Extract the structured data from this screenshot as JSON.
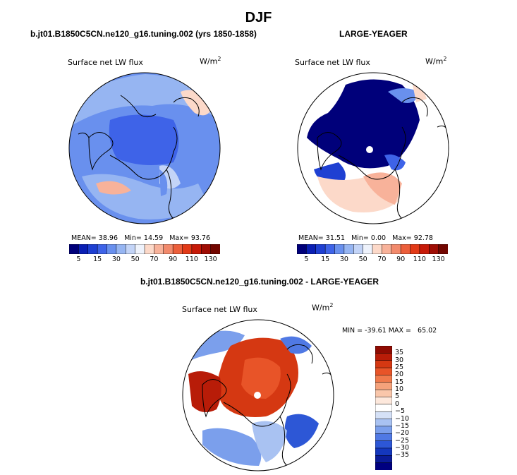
{
  "page_title": "DJF",
  "chart_data": [
    {
      "type": "polar-contour-map",
      "title": "b.jt01.B1850C5CN.ne120_g16.tuning.002 (yrs 1850-1858)",
      "variable": "Surface net LW flux",
      "units_base": "W/m",
      "units_exp": "2",
      "stats": {
        "mean_label": "MEAN=",
        "mean": "38.96",
        "min_label": "Min=",
        "min": "14.59",
        "max_label": "Max=",
        "max": "93.76"
      },
      "colorbar": {
        "orientation": "horizontal",
        "levels": [
          5,
          10,
          15,
          20,
          30,
          40,
          50,
          60,
          70,
          80,
          90,
          100,
          110,
          120,
          130
        ],
        "tick_labels": [
          "5",
          "15",
          "30",
          "50",
          "70",
          "90",
          "110",
          "130"
        ],
        "colors": [
          "#00007a",
          "#0a1fb4",
          "#1f40d2",
          "#3e63e8",
          "#6990ee",
          "#96b5f2",
          "#c3d4f7",
          "#eef2fb",
          "#fcd9c9",
          "#f8b29a",
          "#f28a6c",
          "#ec5f3b",
          "#e23a17",
          "#c71a08",
          "#9f0d04",
          "#720600"
        ]
      },
      "dominant_fill": "#6990ee"
    },
    {
      "type": "polar-contour-map",
      "title": "LARGE-YEAGER",
      "variable": "Surface net LW flux",
      "units_base": "W/m",
      "units_exp": "2",
      "stats": {
        "mean_label": "MEAN=",
        "mean": "31.51",
        "min_label": "Min=",
        "min": "0.00",
        "max_label": "Max=",
        "max": "92.78"
      },
      "colorbar": {
        "orientation": "horizontal",
        "levels": [
          5,
          10,
          15,
          20,
          30,
          40,
          50,
          60,
          70,
          80,
          90,
          100,
          110,
          120,
          130
        ],
        "tick_labels": [
          "5",
          "15",
          "30",
          "50",
          "70",
          "90",
          "110",
          "130"
        ],
        "colors": [
          "#00007a",
          "#0a1fb4",
          "#1f40d2",
          "#3e63e8",
          "#6990ee",
          "#96b5f2",
          "#c3d4f7",
          "#eef2fb",
          "#fcd9c9",
          "#f8b29a",
          "#f28a6c",
          "#ec5f3b",
          "#e23a17",
          "#c71a08",
          "#9f0d04",
          "#720600"
        ]
      },
      "dominant_fill": "#00007a"
    },
    {
      "type": "polar-contour-map",
      "title": "b.jt01.B1850C5CN.ne120_g16.tuning.002 - LARGE-YEAGER",
      "variable": "Surface net LW flux",
      "units_base": "W/m",
      "units_exp": "2",
      "stats": {
        "min_label": "MIN =",
        "min": "-39.61",
        "max_label": "MAX =",
        "max": "65.02"
      },
      "colorbar": {
        "orientation": "vertical",
        "levels": [
          35,
          30,
          25,
          20,
          15,
          10,
          5,
          0,
          -5,
          -10,
          -15,
          -20,
          -25,
          -30,
          -35
        ],
        "tick_labels": [
          "35",
          "30",
          "25",
          "20",
          "15",
          "10",
          "5",
          "0",
          "−5",
          "−10",
          "−15",
          "−20",
          "−25",
          "−30",
          "−35"
        ],
        "colors": [
          "#8f0b02",
          "#b81c08",
          "#d53812",
          "#e85428",
          "#f07a4c",
          "#f5a27b",
          "#f9c6aa",
          "#fde8dc",
          "#ffffff",
          "#d5e1f7",
          "#a9c2f2",
          "#7b9fec",
          "#5079e4",
          "#2d57d6",
          "#1437bd",
          "#0a1b98",
          "#000080"
        ]
      },
      "dominant_fill": "#d53812"
    }
  ]
}
